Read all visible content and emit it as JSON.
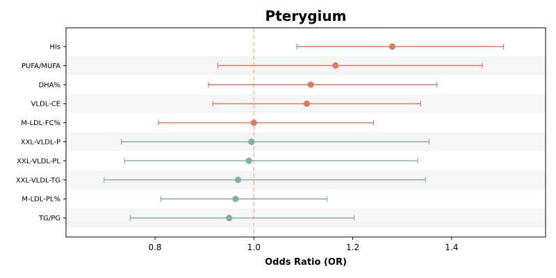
{
  "chart_data": {
    "type": "scatter",
    "title": "Pterygium",
    "xlabel": "Odds Ratio (OR)",
    "ylabel": "",
    "xlim": [
      0.62,
      1.59
    ],
    "x_ticks": [
      0.8,
      1.0,
      1.2,
      1.4
    ],
    "x_tick_labels": [
      "0.8",
      "1.0",
      "1.2",
      "1.4"
    ],
    "reference_line": 1.0,
    "reference_color": "#f6c27e",
    "grid": false,
    "row_banding": true,
    "band_color": "#f5f5f5",
    "colors": {
      "risk": "#e07a5f",
      "protective": "#81b29a"
    },
    "rows": [
      {
        "label": "His",
        "or": 1.28,
        "lower": 1.087,
        "upper": 1.505,
        "group": "risk"
      },
      {
        "label": "PUFA/MUFA",
        "or": 1.165,
        "lower": 0.927,
        "upper": 1.462,
        "group": "risk"
      },
      {
        "label": "DHA%",
        "or": 1.115,
        "lower": 0.908,
        "upper": 1.37,
        "group": "risk"
      },
      {
        "label": "VLDL-CE",
        "or": 1.107,
        "lower": 0.917,
        "upper": 1.337,
        "group": "risk"
      },
      {
        "label": "M-LDL-FC%",
        "or": 1.0,
        "lower": 0.807,
        "upper": 1.242,
        "group": "risk"
      },
      {
        "label": "XXL-VLDL-P",
        "or": 0.995,
        "lower": 0.732,
        "upper": 1.354,
        "group": "protective"
      },
      {
        "label": "XXL-VLDL-PL",
        "or": 0.99,
        "lower": 0.738,
        "upper": 1.331,
        "group": "protective"
      },
      {
        "label": "XXL-VLDL-TG",
        "or": 0.968,
        "lower": 0.697,
        "upper": 1.347,
        "group": "protective"
      },
      {
        "label": "M-LDL-PL%",
        "or": 0.963,
        "lower": 0.812,
        "upper": 1.148,
        "group": "protective"
      },
      {
        "label": "TG/PG",
        "or": 0.95,
        "lower": 0.75,
        "upper": 1.203,
        "group": "protective"
      }
    ]
  }
}
